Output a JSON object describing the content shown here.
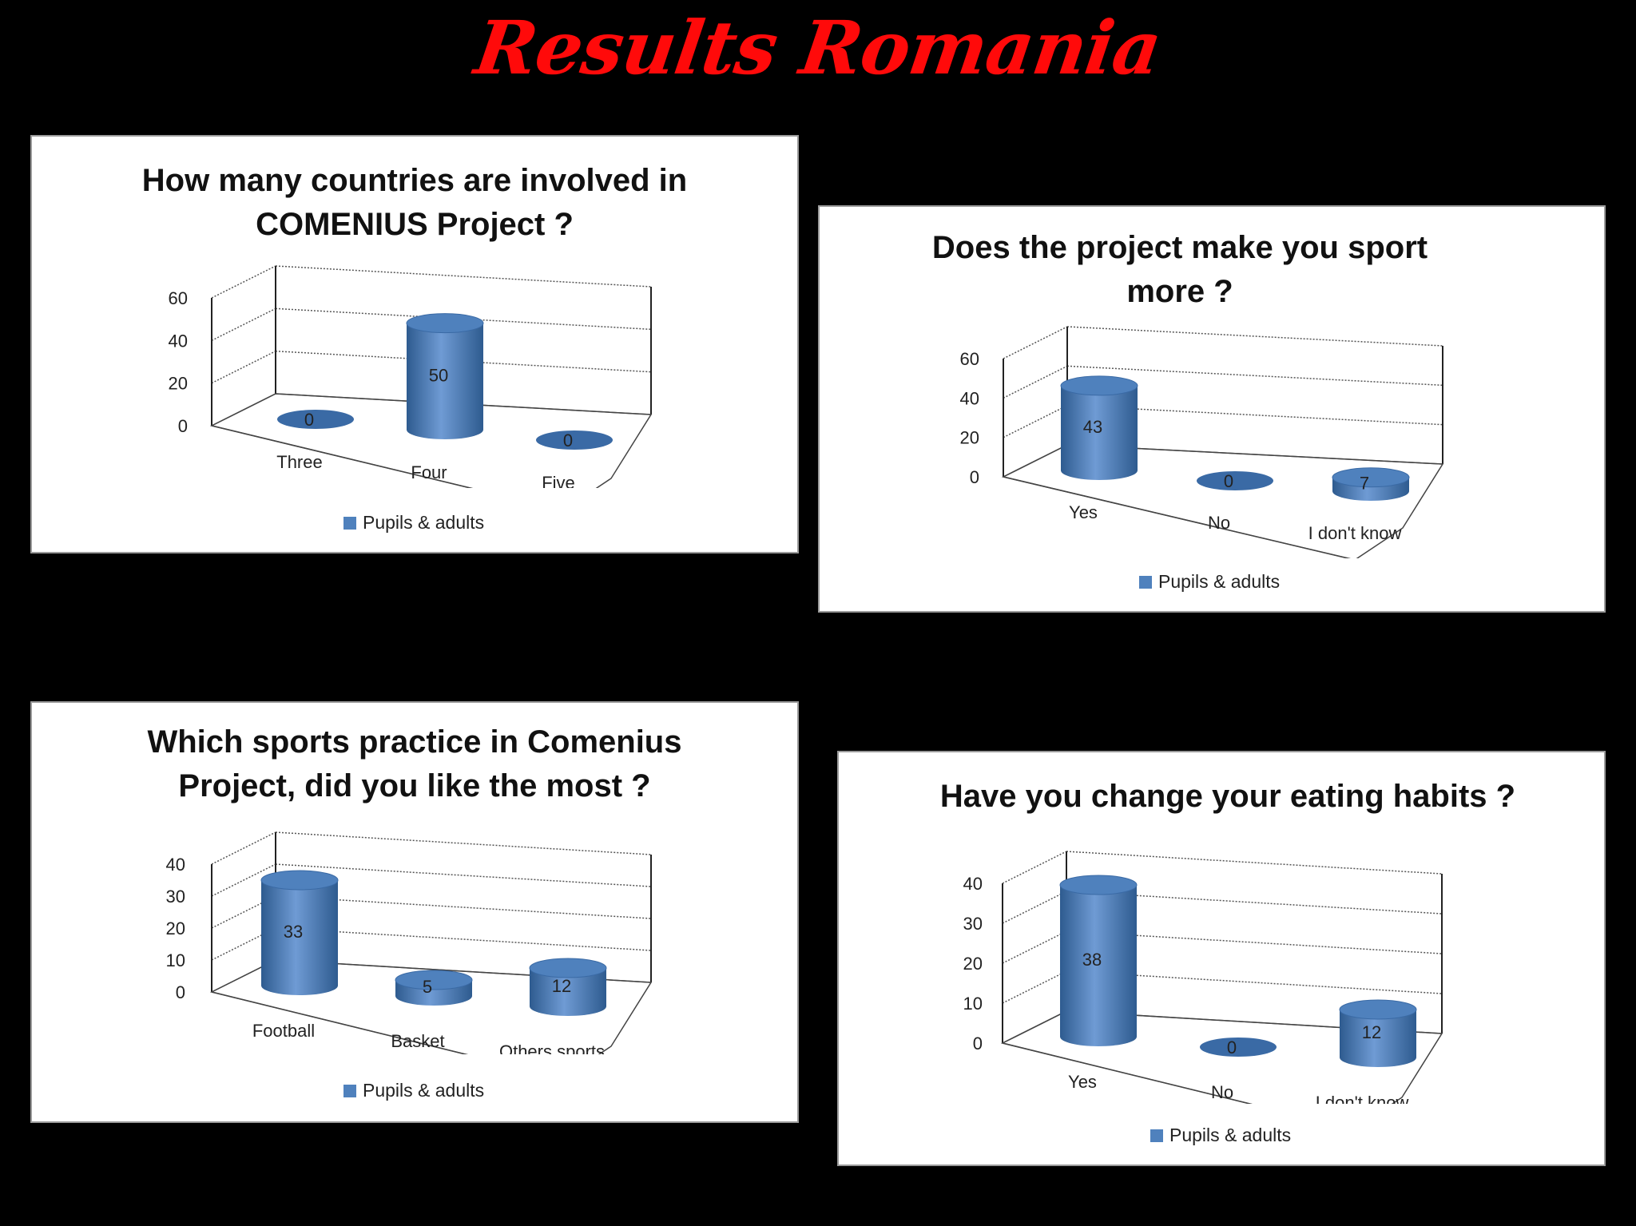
{
  "page_title": "Results Romania",
  "colors": {
    "bar": "#4f81bd",
    "bar_dark": "#2e5b8f",
    "title": "#ff0a0a"
  },
  "chart_data": [
    {
      "type": "bar",
      "title": "How many countries are involved in COMENIUS Project ?",
      "title_lines": [
        "How many countries are involved in",
        "COMENIUS Project ?"
      ],
      "categories": [
        "Three",
        "Four",
        "Five"
      ],
      "series": [
        {
          "name": "Pupils & adults",
          "values": [
            0,
            50,
            0
          ]
        }
      ],
      "ylim": [
        0,
        60
      ],
      "yticks": [
        "0",
        "20",
        "40",
        "60"
      ],
      "style": "3d-cylinder",
      "legend": "bottom"
    },
    {
      "type": "bar",
      "title": "Does the project make you sport more ?",
      "title_lines": [
        "Does the project make you sport",
        "more ?"
      ],
      "categories": [
        "Yes",
        "No",
        "I don't know"
      ],
      "series": [
        {
          "name": "Pupils & adults",
          "values": [
            43,
            0,
            7
          ]
        }
      ],
      "ylim": [
        0,
        60
      ],
      "yticks": [
        "0",
        "20",
        "40",
        "60"
      ],
      "style": "3d-cylinder",
      "legend": "bottom"
    },
    {
      "type": "bar",
      "title": "Which sports practice in Comenius Project, did you like the most ?",
      "title_lines": [
        "Which sports practice in Comenius",
        "Project, did you like the most ?"
      ],
      "categories": [
        "Football",
        "Basket",
        "Others sports"
      ],
      "series": [
        {
          "name": "Pupils & adults",
          "values": [
            33,
            5,
            12
          ]
        }
      ],
      "ylim": [
        0,
        40
      ],
      "yticks": [
        "0",
        "10",
        "20",
        "30",
        "40"
      ],
      "style": "3d-cylinder",
      "legend": "bottom"
    },
    {
      "type": "bar",
      "title": "Have you change your eating habits ?",
      "title_lines": [
        "Have you change your eating habits ?"
      ],
      "categories": [
        "Yes",
        "No",
        "I don't know"
      ],
      "series": [
        {
          "name": "Pupils & adults",
          "values": [
            38,
            0,
            12
          ]
        }
      ],
      "ylim": [
        0,
        40
      ],
      "yticks": [
        "0",
        "10",
        "20",
        "30",
        "40"
      ],
      "style": "3d-cylinder",
      "legend": "bottom"
    }
  ]
}
